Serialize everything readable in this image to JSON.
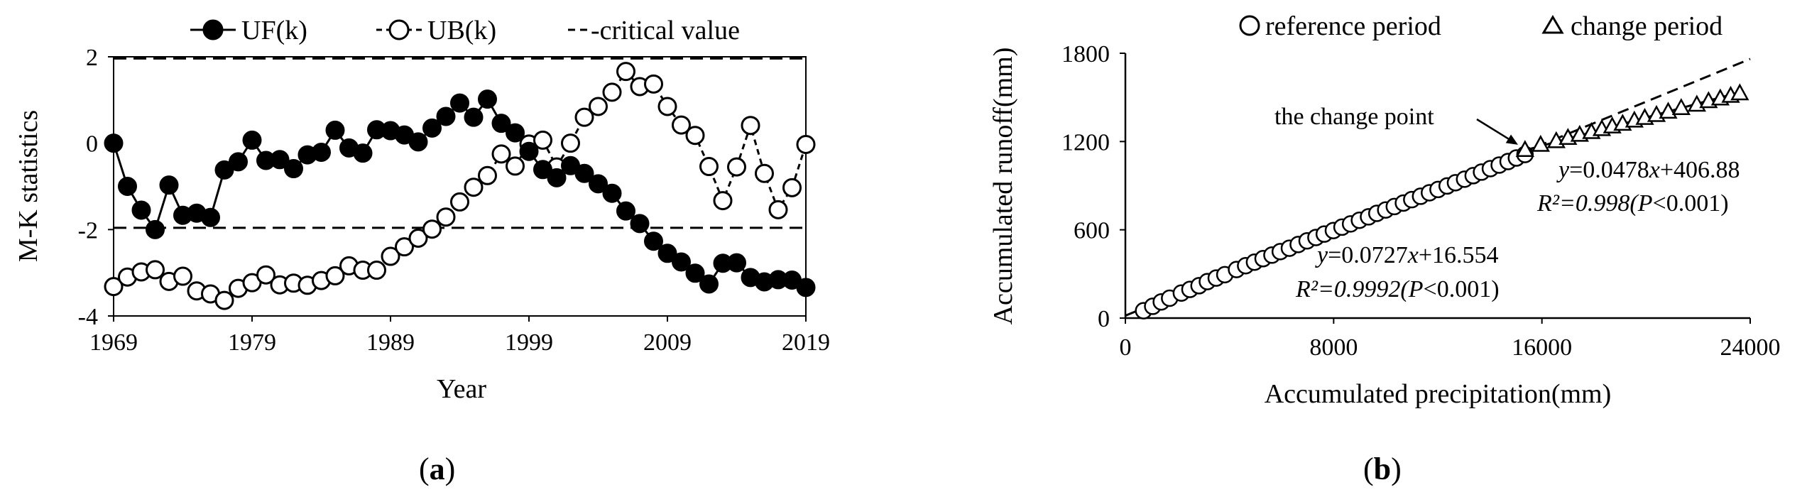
{
  "chart_data": [
    {
      "type": "line",
      "panel": "(a)",
      "caption_open": "(",
      "caption_letter": "a",
      "caption_close": ")",
      "xlabel": "Year",
      "ylabel": "M-K statistics",
      "xlim": [
        1969,
        2019
      ],
      "ylim": [
        -4,
        2
      ],
      "xticks": [
        "1969",
        "1979",
        "1989",
        "1999",
        "2009",
        "2019"
      ],
      "yticks": [
        "-4",
        "-2",
        "0",
        "2"
      ],
      "legend": [
        {
          "symbol": "filled-circle",
          "label": "UF(k)"
        },
        {
          "symbol": "open-circle",
          "label": "UB(k)"
        },
        {
          "symbol": "dash",
          "label": "critical value"
        }
      ],
      "legend_position": "top",
      "critical_values": [
        1.96,
        -1.96
      ],
      "x": [
        1969,
        1970,
        1971,
        1972,
        1973,
        1974,
        1975,
        1976,
        1977,
        1978,
        1979,
        1980,
        1981,
        1982,
        1983,
        1984,
        1985,
        1986,
        1987,
        1988,
        1989,
        1990,
        1991,
        1992,
        1993,
        1994,
        1995,
        1996,
        1997,
        1998,
        1999,
        2000,
        2001,
        2002,
        2003,
        2004,
        2005,
        2006,
        2007,
        2008,
        2009,
        2010,
        2011,
        2012,
        2013,
        2014,
        2015,
        2016,
        2017,
        2018,
        2019
      ],
      "series": [
        {
          "name": "UF(k)",
          "marker": "filled-circle",
          "values": [
            0.0,
            -1.0,
            -1.55,
            -2.0,
            -0.97,
            -1.67,
            -1.62,
            -1.72,
            -0.62,
            -0.43,
            0.07,
            -0.4,
            -0.38,
            -0.59,
            -0.27,
            -0.21,
            0.3,
            -0.11,
            -0.23,
            0.31,
            0.29,
            0.19,
            0.03,
            0.35,
            0.62,
            0.93,
            0.6,
            1.02,
            0.46,
            0.24,
            -0.19,
            -0.61,
            -0.8,
            -0.52,
            -0.7,
            -0.94,
            -1.16,
            -1.57,
            -1.86,
            -2.27,
            -2.55,
            -2.75,
            -3.01,
            -3.26,
            -2.78,
            -2.77,
            -3.11,
            -3.21,
            -3.16,
            -3.17,
            -3.34
          ]
        },
        {
          "name": "UB(k)",
          "marker": "open-circle",
          "values": [
            -3.32,
            -3.1,
            -2.98,
            -2.93,
            -3.2,
            -3.08,
            -3.42,
            -3.49,
            -3.64,
            -3.36,
            -3.23,
            -3.05,
            -3.28,
            -3.24,
            -3.29,
            -3.18,
            -3.07,
            -2.84,
            -2.94,
            -2.94,
            -2.62,
            -2.4,
            -2.2,
            -1.99,
            -1.71,
            -1.36,
            -1.02,
            -0.75,
            -0.25,
            -0.53,
            -0.02,
            0.07,
            -0.55,
            0.0,
            0.6,
            0.85,
            1.18,
            1.66,
            1.31,
            1.37,
            0.85,
            0.42,
            0.18,
            -0.54,
            -1.33,
            -0.55,
            0.41,
            -0.7,
            -1.54,
            -1.03,
            -0.03
          ]
        }
      ]
    },
    {
      "type": "scatter",
      "panel": "(b)",
      "caption_open": "(",
      "caption_letter": "b",
      "caption_close": ")",
      "xlabel": "Accumulated precipitation(mm)",
      "ylabel": "Accumulated runoff(mm)",
      "xlim": [
        0,
        24000
      ],
      "ylim": [
        0,
        1800
      ],
      "xticks": [
        "0",
        "8000",
        "16000",
        "24000"
      ],
      "yticks": [
        "0",
        "600",
        "1200",
        "1800"
      ],
      "legend": [
        {
          "symbol": "open-circle",
          "label": "reference period"
        },
        {
          "symbol": "open-triangle",
          "label": "change period"
        }
      ],
      "legend_position": "top",
      "change_point_label": "the change point",
      "change_point": [
        15300,
        1130
      ],
      "series": [
        {
          "name": "reference period",
          "marker": "open-circle",
          "fit": {
            "slope": 0.0727,
            "intercept": 16.554,
            "x_range": [
              0,
              24000
            ]
          },
          "eq_y": "y",
          "eq_rest": "=0.0727",
          "eq_x": "x",
          "eq_tail": "+16.554",
          "r2_head": "R²=0.9992(",
          "r2_p": "P",
          "r2_tail": "<0.001)",
          "x": [
            700,
            1050,
            1380,
            1700,
            2150,
            2480,
            2830,
            3150,
            3490,
            3820,
            4270,
            4620,
            4960,
            5290,
            5630,
            5950,
            6300,
            6640,
            6980,
            7320,
            7640,
            7990,
            8320,
            8650,
            8990,
            9340,
            9660,
            10000,
            10330,
            10680,
            11000,
            11340,
            11680,
            12010,
            12360,
            12680,
            13030,
            13360,
            13680,
            14020,
            14360,
            14700,
            15020,
            15350
          ],
          "y": [
            50,
            80,
            110,
            135,
            170,
            195,
            220,
            248,
            272,
            295,
            330,
            356,
            380,
            404,
            428,
            452,
            475,
            500,
            525,
            548,
            571,
            595,
            618,
            640,
            665,
            688,
            712,
            735,
            758,
            782,
            805,
            828,
            852,
            874,
            898,
            920,
            944,
            968,
            992,
            1016,
            1040,
            1064,
            1088,
            1112
          ]
        },
        {
          "name": "change period",
          "marker": "open-triangle",
          "fit": {
            "slope": 0.0478,
            "intercept": 406.88,
            "x_range": [
              15300,
              23600
            ]
          },
          "eq_y": "y",
          "eq_rest": "=0.0478",
          "eq_x": "x",
          "eq_tail": "+406.88",
          "r2_head": "R²=0.998(",
          "r2_p": "P",
          "r2_tail": "<0.001)",
          "x": [
            15350,
            15950,
            16550,
            17000,
            17450,
            17900,
            18300,
            18700,
            19100,
            19550,
            19950,
            20400,
            20850,
            21350,
            21950,
            22400,
            22850,
            23250,
            23600
          ],
          "y": [
            1140,
            1175,
            1200,
            1222,
            1243,
            1262,
            1282,
            1300,
            1318,
            1340,
            1358,
            1378,
            1400,
            1425,
            1448,
            1472,
            1490,
            1508,
            1525
          ]
        }
      ]
    }
  ]
}
